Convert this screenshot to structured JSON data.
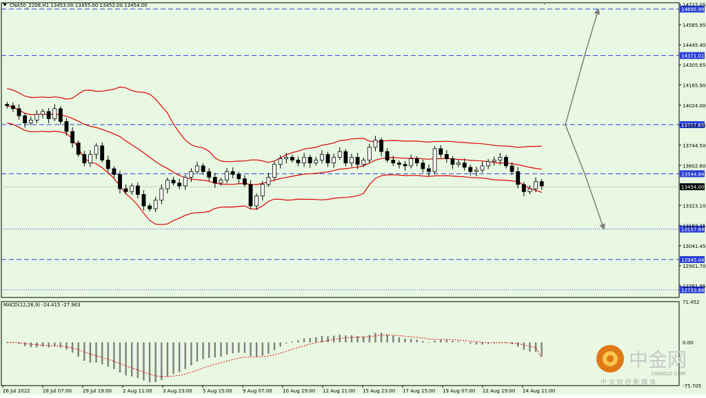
{
  "header": {
    "symbol_line": "CNA50_2208,H1  13453.00 13455.00 13452.00 13454.00",
    "macd_label": "MACD(12,26,9) -24.415 -27.963"
  },
  "colors": {
    "background": "#e8f8e2",
    "candles": "#000000",
    "bollinger": "#e00000",
    "level_lines": "#2a3fd6",
    "level_label_bg": "#2a3fd6",
    "last_price_bg": "#000000",
    "projection_arrows": "#7f7f7f",
    "macd_hist": "#7f7f7f",
    "macd_signal": "#e00000"
  },
  "chart_data": [
    {
      "type": "candlestick",
      "name": "CNA50_2208 H1",
      "ylim": [
        12680,
        14740
      ],
      "y_ticks": [
        14727.05,
        14585.95,
        14445.4,
        14305.65,
        14165.9,
        14024.0,
        13884.3,
        13744.5,
        13602.6,
        13323.1,
        13183.35,
        13041.45,
        12901.7,
        12761.95
      ],
      "x_ticks": [
        "26 Jul 2022",
        "28 Jul 07:00",
        "29 Jul 19:00",
        "2 Aug 11:00",
        "3 Aug 23:00",
        "5 Aug 15:00",
        "9 Aug 07:00",
        "10 Aug 19:00",
        "12 Aug 11:00",
        "15 Aug 23:00",
        "17 Aug 15:00",
        "19 Aug 07:00",
        "22 Aug 19:00",
        "24 Aug 11:00"
      ],
      "close_series": [
        14020,
        14000,
        13950,
        13900,
        13920,
        13960,
        13980,
        13930,
        14000,
        13910,
        13840,
        13760,
        13680,
        13620,
        13680,
        13740,
        13640,
        13580,
        13540,
        13440,
        13420,
        13460,
        13400,
        13320,
        13300,
        13360,
        13440,
        13500,
        13480,
        13460,
        13520,
        13560,
        13600,
        13560,
        13520,
        13480,
        13500,
        13560,
        13540,
        13510,
        13470,
        13320,
        13390,
        13470,
        13520,
        13610,
        13650,
        13660,
        13640,
        13620,
        13660,
        13620,
        13640,
        13680,
        13620,
        13660,
        13700,
        13620,
        13660,
        13610,
        13640,
        13730,
        13780,
        13700,
        13640,
        13620,
        13610,
        13600,
        13650,
        13620,
        13580,
        13560,
        13720,
        13680,
        13650,
        13610,
        13620,
        13590,
        13560,
        13570,
        13600,
        13630,
        13640,
        13660,
        13600,
        13560,
        13470,
        13420,
        13440,
        13490,
        13460
      ],
      "last_price": 13454.0,
      "levels": [
        {
          "value": 14695.99,
          "label": "14695.99",
          "style": "dashed"
        },
        {
          "value": 14371.01,
          "label": "14371.01",
          "style": "dashed"
        },
        {
          "value": 13887.88,
          "label": "13887.88",
          "style": "dashed"
        },
        {
          "value": 13544.84,
          "label": "13544.84",
          "style": "dashed"
        },
        {
          "value": 13157.84,
          "label": "13157.84",
          "style": "dotted"
        },
        {
          "value": 12945.04,
          "label": "12945.04",
          "style": "dashed"
        },
        {
          "value": 12733.68,
          "label": "12733.68",
          "style": "dotted"
        }
      ],
      "indicators": [
        "Bollinger Bands"
      ],
      "projections": [
        {
          "from": 13887.88,
          "via": 14371.01,
          "to": 14695.99
        },
        {
          "from": 13887.88,
          "via": 13544.84,
          "to": 13157.84
        }
      ]
    },
    {
      "type": "bar",
      "name": "MACD(12,26,9)",
      "values_main": -24.415,
      "values_signal": -27.963,
      "ylim": [
        -75.705,
        71.452
      ],
      "y_ticks": [
        71.452,
        0.0,
        -75.705
      ]
    }
  ],
  "watermark": {
    "brand_cn": "中金网",
    "brand_url": "CNGOLD.COM",
    "brand_slogan": "中 文 财 经 新 媒 体"
  }
}
